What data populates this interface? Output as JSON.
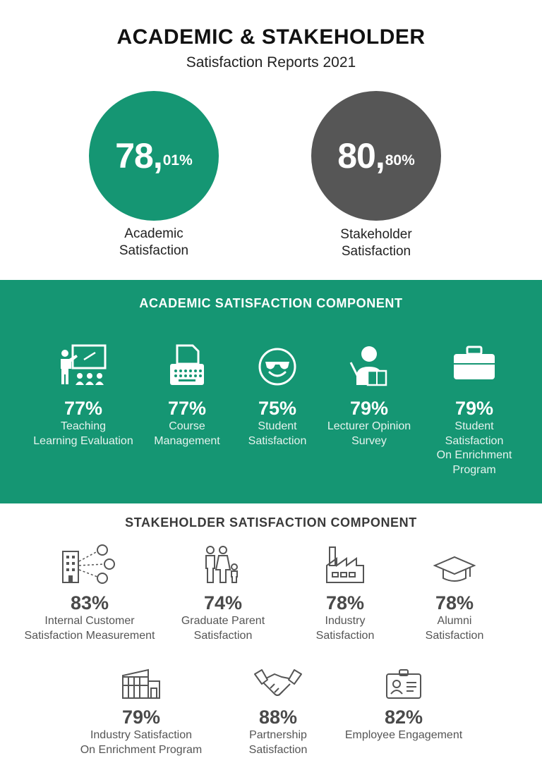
{
  "header": {
    "title": "ACADEMIC & STAKEHOLDER",
    "subtitle": "Satisfaction Reports 2021"
  },
  "summary": [
    {
      "whole": "78,",
      "decimal": "01%",
      "label_line1": "Academic",
      "label_line2": "Satisfaction",
      "color": "#159673"
    },
    {
      "whole": "80,",
      "decimal": "80%",
      "label_line1": "Stakeholder",
      "label_line2": "Satisfaction",
      "color": "#565656"
    }
  ],
  "academic": {
    "title": "ACADEMIC SATISFACTION COMPONENT",
    "band_color": "#159673",
    "items": [
      {
        "icon": "teaching-board-icon",
        "percent": "77%",
        "lines": [
          "Teaching",
          "Learning Evaluation"
        ]
      },
      {
        "icon": "typewriter-icon",
        "percent": "77%",
        "lines": [
          "Course",
          "Management"
        ]
      },
      {
        "icon": "sunglasses-smiley-icon",
        "percent": "75%",
        "lines": [
          "Student",
          "Satisfaction"
        ]
      },
      {
        "icon": "lecturer-icon",
        "percent": "79%",
        "lines": [
          "Lecturer Opinion",
          "Survey"
        ]
      },
      {
        "icon": "briefcase-icon",
        "percent": "79%",
        "lines": [
          "Student",
          "Satisfaction",
          "On Enrichment",
          "Program"
        ]
      }
    ]
  },
  "stakeholder": {
    "title": "STAKEHOLDER SATISFACTION COMPONENT",
    "row1": [
      {
        "icon": "building-network-icon",
        "percent": "83%",
        "lines": [
          "Internal Customer",
          "Satisfaction Measurement"
        ]
      },
      {
        "icon": "family-icon",
        "percent": "74%",
        "lines": [
          "Graduate Parent",
          "Satisfaction"
        ]
      },
      {
        "icon": "factory-icon",
        "percent": "78%",
        "lines": [
          "Industry",
          "Satisfaction"
        ]
      },
      {
        "icon": "graduation-cap-icon",
        "percent": "78%",
        "lines": [
          "Alumni",
          "Satisfaction"
        ]
      }
    ],
    "row2": [
      {
        "icon": "warehouse-icon",
        "percent": "79%",
        "lines": [
          "Industry Satisfaction",
          "On Enrichment Program"
        ]
      },
      {
        "icon": "handshake-icon",
        "percent": "88%",
        "lines": [
          "Partnership",
          "Satisfaction"
        ]
      },
      {
        "icon": "id-card-icon",
        "percent": "82%",
        "lines": [
          "Employee Engagement"
        ]
      }
    ]
  }
}
